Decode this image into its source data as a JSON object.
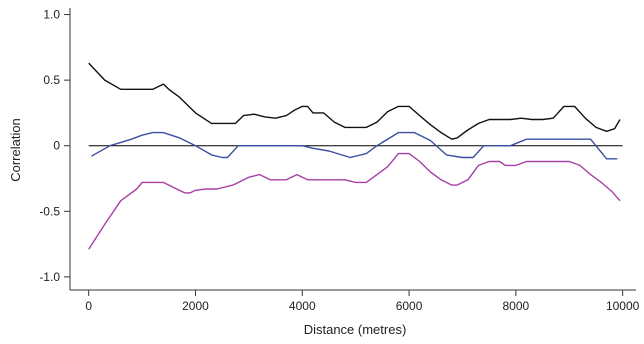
{
  "chart_data": {
    "type": "line",
    "xlabel": "Distance (metres)",
    "ylabel": "Correlation",
    "xlim": [
      -350,
      10250
    ],
    "ylim": [
      -1.1,
      1.05
    ],
    "xticks": [
      0,
      2000,
      4000,
      6000,
      8000,
      10000
    ],
    "xtick_labels": [
      "0",
      "2000",
      "4000",
      "6000",
      "8000",
      "10000"
    ],
    "yticks": [
      1.0,
      0.5,
      0,
      -0.5,
      -1.0
    ],
    "ytick_labels": [
      "1.0",
      "0.5",
      "0",
      "-0.5",
      "-1.0"
    ],
    "reference_line": 0,
    "grid": false,
    "colors": {
      "zero_line": "#000000",
      "axis": "#333333"
    },
    "series": [
      {
        "color": "#111111",
        "x": [
          0,
          300,
          600,
          900,
          1200,
          1400,
          1500,
          1700,
          2000,
          2150,
          2300,
          2500,
          2750,
          2900,
          3100,
          3300,
          3500,
          3700,
          3850,
          4000,
          4100,
          4200,
          4400,
          4600,
          4800,
          5000,
          5200,
          5400,
          5600,
          5800,
          6000,
          6200,
          6400,
          6600,
          6800,
          6900,
          7100,
          7300,
          7500,
          7700,
          7900,
          8100,
          8300,
          8500,
          8700,
          8900,
          9100,
          9300,
          9500,
          9700,
          9850,
          9950
        ],
        "y": [
          0.63,
          0.5,
          0.43,
          0.43,
          0.43,
          0.47,
          0.43,
          0.37,
          0.25,
          0.21,
          0.17,
          0.17,
          0.17,
          0.23,
          0.24,
          0.22,
          0.21,
          0.23,
          0.27,
          0.3,
          0.3,
          0.25,
          0.25,
          0.18,
          0.14,
          0.14,
          0.14,
          0.18,
          0.26,
          0.3,
          0.3,
          0.23,
          0.16,
          0.1,
          0.05,
          0.06,
          0.12,
          0.17,
          0.2,
          0.2,
          0.2,
          0.21,
          0.2,
          0.2,
          0.21,
          0.3,
          0.3,
          0.21,
          0.14,
          0.11,
          0.13,
          0.2
        ]
      },
      {
        "color": "#3a4fa0",
        "x": [
          50,
          400,
          800,
          1000,
          1200,
          1400,
          1700,
          2000,
          2300,
          2500,
          2600,
          2800,
          3000,
          3500,
          4000,
          4200,
          4500,
          4900,
          5200,
          5400,
          5800,
          6100,
          6400,
          6700,
          7000,
          7200,
          7400,
          7700,
          7900,
          8200,
          8500,
          8800,
          9000,
          9200,
          9400,
          9700,
          9900
        ],
        "y": [
          -0.08,
          0,
          0.05,
          0.08,
          0.1,
          0.1,
          0.06,
          0,
          -0.07,
          -0.09,
          -0.09,
          0,
          0,
          0,
          0,
          -0.02,
          -0.04,
          -0.09,
          -0.06,
          0,
          0.1,
          0.1,
          0.04,
          -0.07,
          -0.09,
          -0.09,
          0,
          0,
          0,
          0.05,
          0.05,
          0.05,
          0.05,
          0.05,
          0.05,
          -0.1,
          -0.1
        ]
      },
      {
        "color": "#a640a6",
        "x": [
          0,
          300,
          600,
          900,
          1000,
          1200,
          1400,
          1600,
          1800,
          1900,
          2000,
          2200,
          2400,
          2700,
          3000,
          3200,
          3400,
          3700,
          3900,
          4100,
          4300,
          4600,
          4800,
          5000,
          5200,
          5600,
          5800,
          6000,
          6200,
          6400,
          6600,
          6800,
          6900,
          7100,
          7300,
          7500,
          7700,
          7800,
          8000,
          8200,
          8400,
          8800,
          9000,
          9200,
          9400,
          9600,
          9800,
          9950
        ],
        "y": [
          -0.79,
          -0.6,
          -0.42,
          -0.33,
          -0.28,
          -0.28,
          -0.28,
          -0.32,
          -0.36,
          -0.36,
          -0.34,
          -0.33,
          -0.33,
          -0.3,
          -0.24,
          -0.22,
          -0.26,
          -0.26,
          -0.22,
          -0.26,
          -0.26,
          -0.26,
          -0.26,
          -0.28,
          -0.28,
          -0.16,
          -0.06,
          -0.06,
          -0.12,
          -0.2,
          -0.26,
          -0.3,
          -0.3,
          -0.26,
          -0.15,
          -0.12,
          -0.12,
          -0.15,
          -0.15,
          -0.12,
          -0.12,
          -0.12,
          -0.12,
          -0.15,
          -0.22,
          -0.28,
          -0.35,
          -0.42
        ]
      }
    ]
  }
}
